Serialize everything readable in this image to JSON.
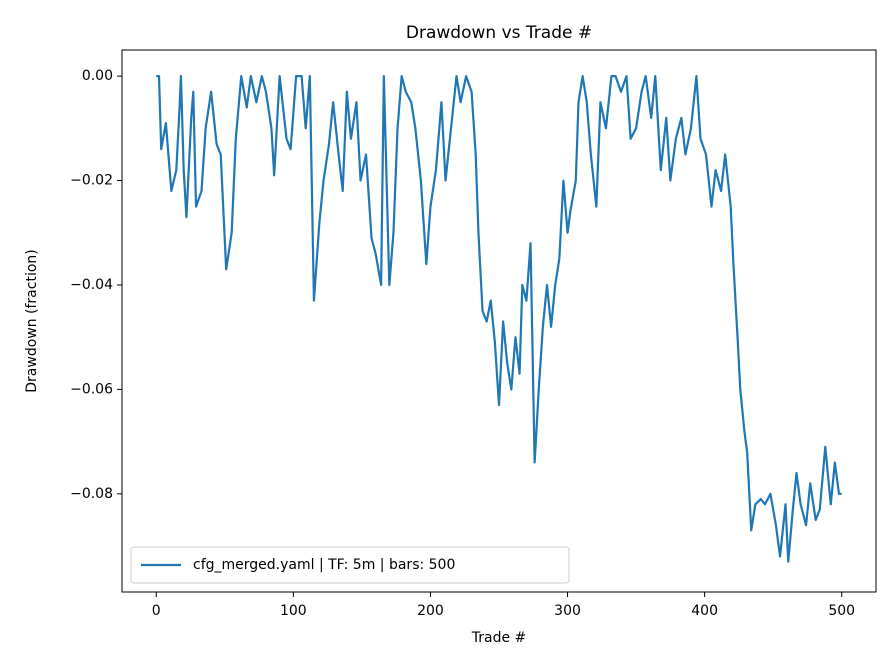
{
  "chart_data": {
    "type": "line",
    "title": "Drawdown vs Trade #",
    "xlabel": "Trade #",
    "ylabel": "Drawdown (fraction)",
    "xlim": [
      -25,
      525
    ],
    "xticks": [
      0,
      100,
      200,
      300,
      400,
      500
    ],
    "ylim": [
      -0.0988,
      0.005
    ],
    "yticks": [
      {
        "value": 0,
        "label": "0.00"
      },
      {
        "value": -0.02,
        "label": "−0.02"
      },
      {
        "value": -0.04,
        "label": "−0.04"
      },
      {
        "value": -0.06,
        "label": "−0.06"
      },
      {
        "value": -0.08,
        "label": "−0.08"
      }
    ],
    "legend": "lower left",
    "series": [
      {
        "name": "cfg_merged.yaml | TF: 5m | bars: 500",
        "color": "#1f77b4",
        "x": [
          0,
          2,
          3.6,
          7,
          11,
          14.6,
          17,
          18,
          20,
          22,
          25.5,
          27,
          29,
          33,
          36,
          40,
          44,
          47,
          51,
          55,
          58,
          62,
          66,
          69,
          73,
          77,
          80,
          84,
          86,
          90,
          95,
          98,
          102,
          106,
          109,
          112,
          115,
          119,
          122,
          126,
          129,
          133,
          136,
          139,
          142,
          146,
          149,
          153,
          157,
          160,
          164,
          166,
          170,
          173,
          176,
          179,
          182,
          186,
          189,
          193,
          197,
          200,
          204,
          208,
          211,
          215,
          219,
          222,
          226,
          230,
          233,
          235,
          238,
          241,
          244,
          247,
          250,
          253,
          256,
          259,
          262,
          265,
          267,
          270,
          273,
          276,
          279,
          282,
          285,
          288,
          291,
          294,
          297,
          300,
          302,
          306,
          308,
          311,
          314,
          317,
          321,
          324,
          328,
          332,
          335,
          339,
          343,
          346,
          350,
          354,
          357,
          361,
          364,
          368,
          372,
          375,
          379,
          383,
          386,
          390,
          394,
          397,
          401,
          405,
          408,
          412,
          415,
          419,
          421,
          424,
          426,
          429,
          431,
          434,
          437,
          441,
          444,
          448,
          452,
          455,
          459,
          461,
          464,
          467,
          470,
          474,
          477,
          481,
          484,
          488,
          492,
          495,
          498,
          500
        ],
        "values": [
          0,
          0,
          -0.014,
          -0.009,
          -0.022,
          -0.018,
          -0.006,
          0,
          -0.018,
          -0.027,
          -0.008,
          -0.003,
          -0.025,
          -0.022,
          -0.01,
          -0.003,
          -0.013,
          -0.015,
          -0.037,
          -0.03,
          -0.012,
          0,
          -0.006,
          0,
          -0.005,
          0,
          -0.003,
          -0.01,
          -0.019,
          0,
          -0.012,
          -0.014,
          0,
          0,
          -0.01,
          0,
          -0.043,
          -0.028,
          -0.02,
          -0.013,
          -0.005,
          -0.015,
          -0.022,
          -0.003,
          -0.012,
          -0.005,
          -0.02,
          -0.015,
          -0.031,
          -0.034,
          -0.04,
          0,
          -0.04,
          -0.03,
          -0.01,
          0,
          -0.003,
          -0.005,
          -0.01,
          -0.02,
          -0.036,
          -0.025,
          -0.018,
          -0.005,
          -0.02,
          -0.01,
          0,
          -0.005,
          0,
          -0.003,
          -0.015,
          -0.03,
          -0.045,
          -0.047,
          -0.043,
          -0.051,
          -0.063,
          -0.047,
          -0.055,
          -0.06,
          -0.05,
          -0.057,
          -0.04,
          -0.043,
          -0.032,
          -0.074,
          -0.06,
          -0.048,
          -0.04,
          -0.048,
          -0.04,
          -0.035,
          -0.02,
          -0.03,
          -0.026,
          -0.02,
          -0.005,
          0,
          -0.005,
          -0.015,
          -0.025,
          -0.005,
          -0.01,
          0,
          0,
          -0.003,
          0,
          -0.012,
          -0.01,
          -0.003,
          0,
          -0.008,
          0,
          -0.018,
          -0.008,
          -0.02,
          -0.012,
          -0.008,
          -0.015,
          -0.01,
          0,
          -0.012,
          -0.015,
          -0.025,
          -0.018,
          -0.022,
          -0.015,
          -0.025,
          -0.036,
          -0.05,
          -0.06,
          -0.068,
          -0.072,
          -0.087,
          -0.082,
          -0.081,
          -0.082,
          -0.08,
          -0.086,
          -0.092,
          -0.082,
          -0.093,
          -0.084,
          -0.076,
          -0.082,
          -0.086,
          -0.078,
          -0.085,
          -0.083,
          -0.071,
          -0.082,
          -0.074,
          -0.08,
          -0.08
        ]
      }
    ]
  }
}
